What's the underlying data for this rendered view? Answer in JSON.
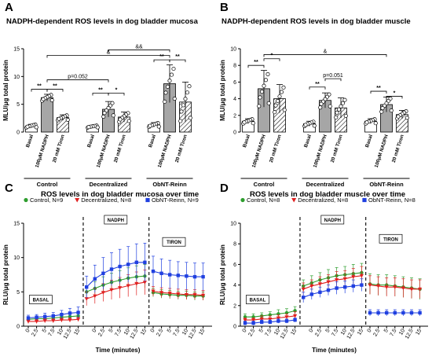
{
  "panels": {
    "A": {
      "letter": "A",
      "title": "NADPH-dependent ROS levels in dog bladder mucosa",
      "ylabel": "MLU/μg total protein",
      "ylim": [
        0,
        15
      ],
      "yticks": [
        "0",
        "5",
        "10",
        "15"
      ],
      "categories": [
        "Basal",
        "100μM NADPH",
        "20 mM Tiron"
      ],
      "groups": [
        "Control",
        "Decentralized",
        "ObNT-Reinn"
      ],
      "values": [
        [
          1.1,
          6.2,
          2.6
        ],
        [
          1.0,
          4.1,
          2.7
        ],
        [
          1.3,
          8.7,
          5.4
        ]
      ],
      "errors": [
        [
          0.3,
          0.6,
          0.5
        ],
        [
          0.2,
          1.4,
          0.9
        ],
        [
          0.4,
          3.4,
          3.6
        ]
      ],
      "annotations": [
        "**",
        "**",
        "p=0.052",
        "**",
        "*",
        "**",
        "**",
        "&",
        "&&"
      ]
    },
    "B": {
      "letter": "B",
      "title": "NADPH-dependent ROS levels in dog bladder muscle",
      "ylabel": "MLU/μg total protein",
      "ylim": [
        0,
        10
      ],
      "yticks": [
        "0",
        "2",
        "4",
        "6",
        "8",
        "10"
      ],
      "categories": [
        "Basal",
        "100μM NADPH",
        "20 mM Tiron"
      ],
      "groups": [
        "Control",
        "Decentralized",
        "ObNT-Reinn"
      ],
      "values": [
        [
          1.3,
          5.2,
          4.0
        ],
        [
          1.0,
          3.8,
          2.9
        ],
        [
          1.3,
          3.3,
          2.1
        ]
      ],
      "errors": [
        [
          0.3,
          2.2,
          1.7
        ],
        [
          0.3,
          0.9,
          1.2
        ],
        [
          0.3,
          0.9,
          0.5
        ]
      ],
      "annotations": [
        "**",
        "*",
        "**",
        "p=0.051",
        "**",
        "*",
        "&"
      ]
    },
    "C": {
      "letter": "C",
      "title": "ROS levels in dog bladder mucosa over time",
      "ylabel": "RLU/μg total protein",
      "xlabel": "Time (minutes)",
      "ylim": [
        0,
        15
      ],
      "yticks": [
        "0",
        "5",
        "10",
        "15"
      ],
      "phase_labels": [
        "BASAL",
        "NADPH",
        "TIRON"
      ],
      "legend": [
        "Control, N=9",
        "Decentralized, N=8",
        "ObNT-Reinn, N=9"
      ],
      "colors": [
        "#2e9e2e",
        "#e02020",
        "#2040e0"
      ],
      "series": [
        {
          "name": "Control, N=9",
          "values": [
            1.0,
            1.1,
            1.1,
            1.2,
            1.3,
            1.4,
            1.5,
            5.0,
            5.5,
            6.0,
            6.4,
            6.7,
            7.0,
            7.2,
            7.3,
            4.9,
            4.7,
            4.6,
            4.5,
            4.5,
            4.4,
            4.4
          ],
          "errors": [
            0.3,
            0.3,
            0.3,
            0.4,
            0.4,
            0.4,
            0.5,
            0.8,
            1.0,
            1.2,
            1.3,
            1.4,
            1.5,
            1.6,
            1.7,
            0.6,
            0.6,
            0.6,
            0.6,
            0.6,
            0.6,
            0.6
          ]
        },
        {
          "name": "Decentralized, N=8",
          "values": [
            0.7,
            0.7,
            0.8,
            0.8,
            0.9,
            0.9,
            1.0,
            4.0,
            4.4,
            4.9,
            5.3,
            5.6,
            5.9,
            6.2,
            6.4,
            5.1,
            4.9,
            4.8,
            4.7,
            4.6,
            4.6,
            4.5
          ],
          "errors": [
            0.3,
            0.3,
            0.3,
            0.3,
            0.3,
            0.3,
            0.3,
            1.0,
            1.1,
            1.3,
            1.4,
            1.5,
            1.6,
            1.7,
            1.8,
            0.7,
            0.7,
            0.7,
            0.7,
            0.7,
            0.7,
            0.7
          ]
        },
        {
          "name": "ObNT-Reinn, N=9",
          "values": [
            1.2,
            1.3,
            1.4,
            1.5,
            1.7,
            1.9,
            2.0,
            5.7,
            6.9,
            7.7,
            8.3,
            8.7,
            9.0,
            9.3,
            9.3,
            8.0,
            7.7,
            7.5,
            7.4,
            7.3,
            7.2,
            7.2
          ],
          "errors": [
            0.4,
            0.4,
            0.5,
            0.5,
            0.6,
            0.7,
            0.8,
            1.6,
            2.0,
            2.3,
            2.4,
            2.5,
            2.6,
            2.7,
            2.8,
            2.2,
            2.1,
            2.1,
            2.0,
            2.0,
            2.0,
            2.0
          ]
        }
      ]
    },
    "D": {
      "letter": "D",
      "title": "ROS levels in dog bladder muscle over time",
      "ylabel": "RLU/μg total protein",
      "xlabel": "Time (minutes)",
      "ylim": [
        0,
        10
      ],
      "yticks": [
        "0",
        "2",
        "4",
        "6",
        "8",
        "10"
      ],
      "phase_labels": [
        "BASAL",
        "NADPH",
        "TIRON"
      ],
      "legend": [
        "Control, N=8",
        "Decentralized, N=8",
        "ObNT-Reinn, N=8"
      ],
      "colors": [
        "#2e9e2e",
        "#e02020",
        "#2040e0"
      ],
      "series": [
        {
          "name": "Control, N=8",
          "values": [
            0.9,
            0.9,
            1.0,
            1.1,
            1.2,
            1.3,
            1.5,
            3.9,
            4.2,
            4.5,
            4.7,
            4.9,
            5.0,
            5.1,
            5.2,
            4.1,
            4.0,
            4.0,
            3.9,
            3.8,
            3.7,
            3.6
          ],
          "errors": [
            0.3,
            0.3,
            0.3,
            0.3,
            0.4,
            0.4,
            0.4,
            0.6,
            0.7,
            0.7,
            0.8,
            0.8,
            0.8,
            0.9,
            0.9,
            1.0,
            1.0,
            1.0,
            1.0,
            1.0,
            1.0,
            1.0
          ]
        },
        {
          "name": "Decentralized, N=8",
          "values": [
            0.6,
            0.6,
            0.7,
            0.7,
            0.8,
            0.9,
            1.0,
            3.6,
            3.9,
            4.1,
            4.3,
            4.5,
            4.6,
            4.8,
            4.9,
            4.0,
            3.9,
            3.8,
            3.8,
            3.7,
            3.6,
            3.6
          ],
          "errors": [
            0.2,
            0.2,
            0.3,
            0.3,
            0.3,
            0.3,
            0.4,
            0.6,
            0.6,
            0.7,
            0.7,
            0.8,
            0.8,
            0.8,
            0.9,
            0.9,
            0.9,
            0.9,
            0.9,
            0.9,
            0.9,
            0.9
          ]
        },
        {
          "name": "ObNT-Reinn, N=8",
          "values": [
            0.3,
            0.3,
            0.4,
            0.4,
            0.5,
            0.5,
            0.6,
            2.8,
            3.1,
            3.3,
            3.5,
            3.7,
            3.8,
            3.9,
            4.0,
            1.3,
            1.3,
            1.3,
            1.3,
            1.3,
            1.3,
            1.3
          ],
          "errors": [
            0.2,
            0.2,
            0.2,
            0.2,
            0.2,
            0.2,
            0.2,
            0.5,
            0.5,
            0.5,
            0.5,
            0.6,
            0.6,
            0.6,
            0.6,
            0.3,
            0.3,
            0.3,
            0.3,
            0.3,
            0.3,
            0.3
          ]
        }
      ]
    }
  },
  "time_ticks": [
    "0",
    "2.5",
    "5",
    "7.5",
    "10",
    "12.5",
    "15",
    "0",
    "2.5",
    "5",
    "7.5",
    "10",
    "12.5",
    "15",
    "0",
    "2.5",
    "5",
    "7.5",
    "10",
    "12.5",
    "15"
  ],
  "chart_data": [
    {
      "type": "bar",
      "title": "NADPH-dependent ROS levels in dog bladder mucosa",
      "ylabel": "MLU/μg total protein",
      "ylim": [
        0,
        15
      ],
      "categories": [
        "Control",
        "Decentralized",
        "ObNT-Reinn"
      ],
      "series": [
        {
          "name": "Basal",
          "values": [
            1.1,
            1.0,
            1.3
          ]
        },
        {
          "name": "100μM NADPH",
          "values": [
            6.2,
            4.1,
            8.7
          ]
        },
        {
          "name": "20 mM Tiron",
          "values": [
            2.6,
            2.7,
            5.4
          ]
        }
      ]
    },
    {
      "type": "bar",
      "title": "NADPH-dependent ROS levels in dog bladder muscle",
      "ylabel": "MLU/μg total protein",
      "ylim": [
        0,
        10
      ],
      "categories": [
        "Control",
        "Decentralized",
        "ObNT-Reinn"
      ],
      "series": [
        {
          "name": "Basal",
          "values": [
            1.3,
            1.0,
            1.3
          ]
        },
        {
          "name": "100μM NADPH",
          "values": [
            5.2,
            3.8,
            3.3
          ]
        },
        {
          "name": "20 mM Tiron",
          "values": [
            4.0,
            2.9,
            2.1
          ]
        }
      ]
    },
    {
      "type": "line",
      "title": "ROS levels in dog bladder mucosa over time",
      "xlabel": "Time (minutes)",
      "ylabel": "RLU/μg total protein",
      "ylim": [
        0,
        15
      ],
      "series": [
        {
          "name": "Control, N=9"
        },
        {
          "name": "Decentralized, N=8"
        },
        {
          "name": "ObNT-Reinn, N=9"
        }
      ]
    },
    {
      "type": "line",
      "title": "ROS levels in dog bladder muscle over time",
      "xlabel": "Time (minutes)",
      "ylabel": "RLU/μg total protein",
      "ylim": [
        0,
        10
      ],
      "series": [
        {
          "name": "Control, N=8"
        },
        {
          "name": "Decentralized, N=8"
        },
        {
          "name": "ObNT-Reinn, N=8"
        }
      ]
    }
  ]
}
